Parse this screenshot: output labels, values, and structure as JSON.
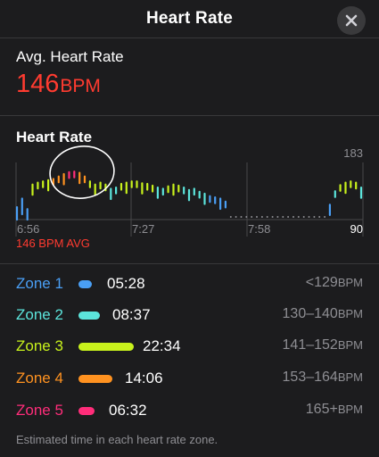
{
  "header": {
    "title": "Heart Rate",
    "close_icon": "close-x-icon"
  },
  "average": {
    "label": "Avg. Heart Rate",
    "value": "146",
    "unit": "BPM",
    "color": "#ff3b30"
  },
  "chart": {
    "heading": "Heart Rate",
    "y_top_label": "183",
    "y_bottom_label": "90",
    "x_labels": [
      "6:56",
      "7:27",
      "7:58"
    ],
    "avg_label": "146 BPM AVG",
    "avg_color": "#ff3b30"
  },
  "chart_data": {
    "type": "line",
    "title": "Heart Rate",
    "ylim": [
      90,
      183
    ],
    "x_ticks": [
      "6:56",
      "7:27",
      "7:58"
    ],
    "series": [
      {
        "values": [
          108,
          122,
          105,
          145,
          148,
          150,
          152,
          154,
          158,
          162,
          165,
          166,
          164,
          158,
          150,
          145,
          148,
          145,
          138,
          140,
          146,
          148,
          150,
          150,
          147,
          146,
          143,
          140,
          138,
          142,
          145,
          143,
          140,
          136,
          138,
          133,
          130,
          126,
          124,
          122,
          117,
          101,
          101,
          101,
          101,
          101,
          101,
          101,
          101,
          101,
          101,
          101,
          101,
          101,
          101,
          101,
          101,
          101,
          101,
          101,
          112,
          134,
          144,
          148,
          150,
          148,
          140
        ]
      }
    ],
    "gap_start_index": 41,
    "gap_end_index": 59
  },
  "zones": [
    {
      "name": "Zone 1",
      "time": "05:28",
      "range": "<129",
      "unit": "BPM",
      "color": "#4a9ff5",
      "fraction": 0.24
    },
    {
      "name": "Zone 2",
      "time": "08:37",
      "range": "130–140",
      "unit": "BPM",
      "color": "#5ce5dc",
      "fraction": 0.38
    },
    {
      "name": "Zone 3",
      "time": "22:34",
      "range": "141–152",
      "unit": "BPM",
      "color": "#c8f21c",
      "fraction": 1.0
    },
    {
      "name": "Zone 4",
      "time": "14:06",
      "range": "153–164",
      "unit": "BPM",
      "color": "#ff9220",
      "fraction": 0.62
    },
    {
      "name": "Zone 5",
      "time": "06:32",
      "range": "165+",
      "unit": "BPM",
      "color": "#ff2d7a",
      "fraction": 0.29
    }
  ],
  "footnote": "Estimated time in each heart rate zone."
}
